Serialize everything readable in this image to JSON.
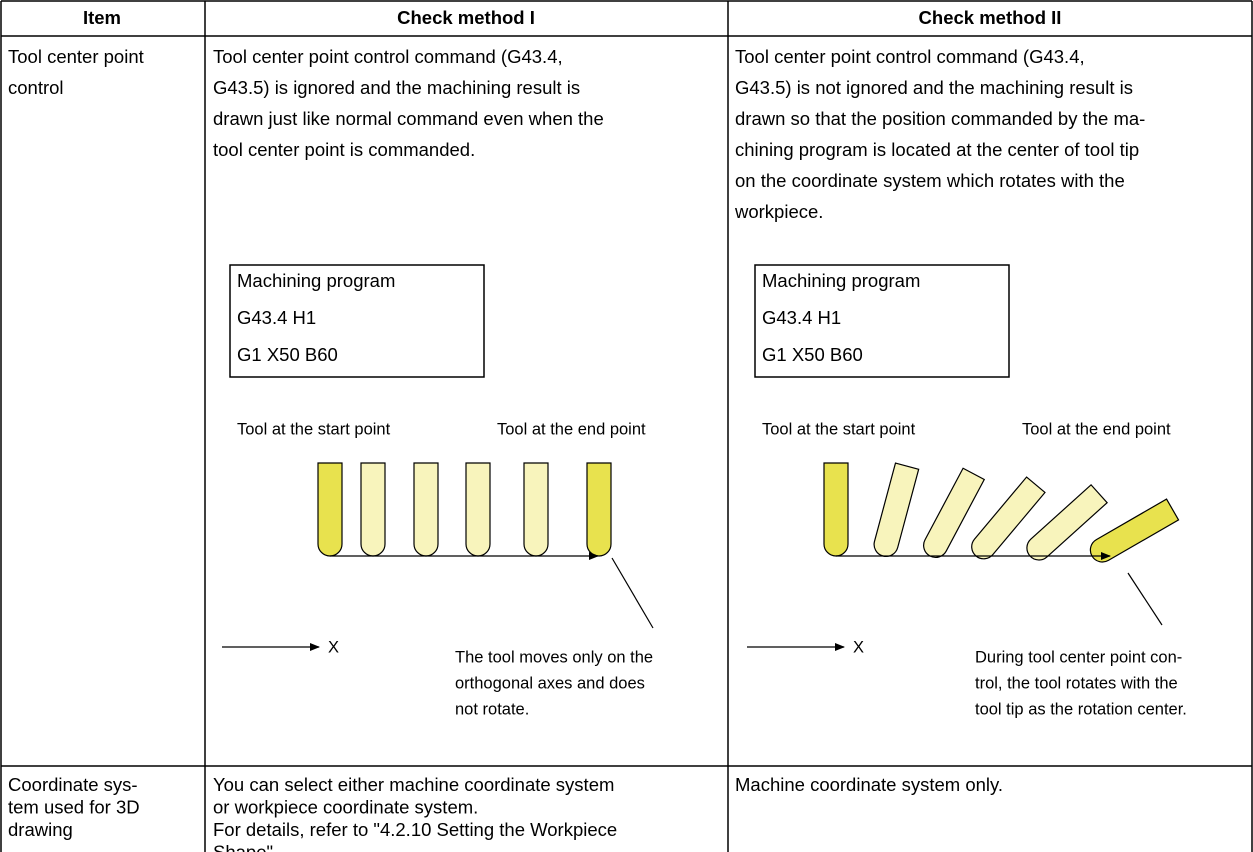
{
  "table": {
    "header": [
      "Item",
      "Check method I",
      "Check method II"
    ],
    "rows": [
      {
        "item": [
          "Tool center point",
          "control"
        ],
        "method_1": {
          "text": [
            "Tool center point control command (G43.4,",
            "G43.5) is ignored and the machining result is",
            "drawn just like normal command even when the",
            "tool center point is commanded."
          ],
          "program": [
            "Machining program",
            "G43.4 H1",
            "G1 X50 B60"
          ],
          "start_label": "Tool at the start point",
          "end_label": "Tool at the end point",
          "axis_label": "X",
          "note": [
            "The tool moves only on the",
            "orthogonal axes and does",
            "not rotate."
          ]
        },
        "method_2": {
          "text": [
            "Tool center point control command (G43.4,",
            "G43.5) is not ignored and the machining result is",
            "drawn so that the position commanded by the ma-",
            "chining program is located at the center of tool tip",
            "on the coordinate system which rotates with the",
            "workpiece."
          ],
          "program": [
            "Machining program",
            "G43.4 H1",
            "G1 X50 B60"
          ],
          "start_label": "Tool at the start point",
          "end_label": "Tool at the end point",
          "axis_label": "X",
          "note": [
            "During tool center point con-",
            "trol, the tool rotates with the",
            "tool tip as the rotation center."
          ]
        }
      },
      {
        "item": [
          "Coordinate sys-",
          "tem used for 3D",
          "drawing"
        ],
        "method_1": {
          "text": [
            "You can select either machine coordinate system",
            "or workpiece coordinate system.",
            "For details, refer to \"4.2.10 Setting the Workpiece",
            "Shape\"."
          ]
        },
        "method_2": {
          "text": [
            "Machine coordinate system only."
          ]
        }
      }
    ]
  }
}
